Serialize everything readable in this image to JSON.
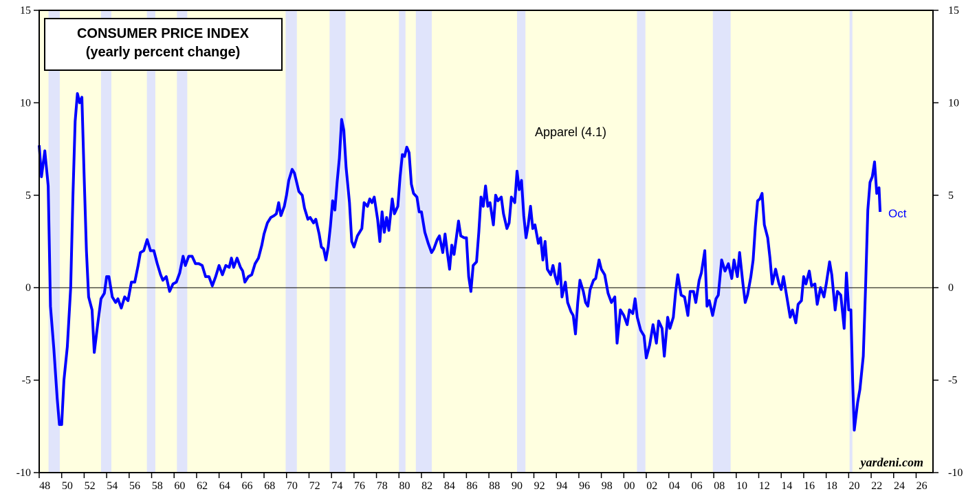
{
  "chart_data": {
    "type": "line",
    "title": "CONSUMER PRICE INDEX",
    "subtitle": "(yearly percent change)",
    "annotation": "Apparel (4.1)",
    "end_label": "Oct",
    "source": "yardeni.com",
    "xlim": [
      1948,
      2027.5
    ],
    "ylim": [
      -10,
      15
    ],
    "yticks": [
      -10,
      -5,
      0,
      5,
      10,
      15
    ],
    "xticks": [
      {
        "value": 1948,
        "label": "48"
      },
      {
        "value": 1950,
        "label": "50"
      },
      {
        "value": 1952,
        "label": "52"
      },
      {
        "value": 1954,
        "label": "54"
      },
      {
        "value": 1956,
        "label": "56"
      },
      {
        "value": 1958,
        "label": "58"
      },
      {
        "value": 1960,
        "label": "60"
      },
      {
        "value": 1962,
        "label": "62"
      },
      {
        "value": 1964,
        "label": "64"
      },
      {
        "value": 1966,
        "label": "66"
      },
      {
        "value": 1968,
        "label": "68"
      },
      {
        "value": 1970,
        "label": "70"
      },
      {
        "value": 1972,
        "label": "72"
      },
      {
        "value": 1974,
        "label": "74"
      },
      {
        "value": 1976,
        "label": "76"
      },
      {
        "value": 1978,
        "label": "78"
      },
      {
        "value": 1980,
        "label": "80"
      },
      {
        "value": 1982,
        "label": "82"
      },
      {
        "value": 1984,
        "label": "84"
      },
      {
        "value": 1986,
        "label": "86"
      },
      {
        "value": 1988,
        "label": "88"
      },
      {
        "value": 1990,
        "label": "90"
      },
      {
        "value": 1992,
        "label": "92"
      },
      {
        "value": 1994,
        "label": "94"
      },
      {
        "value": 1996,
        "label": "96"
      },
      {
        "value": 1998,
        "label": "98"
      },
      {
        "value": 2000,
        "label": "00"
      },
      {
        "value": 2002,
        "label": "02"
      },
      {
        "value": 2004,
        "label": "04"
      },
      {
        "value": 2006,
        "label": "06"
      },
      {
        "value": 2008,
        "label": "08"
      },
      {
        "value": 2010,
        "label": "10"
      },
      {
        "value": 2012,
        "label": "12"
      },
      {
        "value": 2014,
        "label": "14"
      },
      {
        "value": 2016,
        "label": "16"
      },
      {
        "value": 2018,
        "label": "18"
      },
      {
        "value": 2020,
        "label": "20"
      },
      {
        "value": 2022,
        "label": "22"
      },
      {
        "value": 2024,
        "label": "24"
      },
      {
        "value": 2026,
        "label": "26"
      }
    ],
    "background_color": "#ffffe0",
    "recession_color": "#e0e4fb",
    "recessions": [
      [
        1948.83,
        1949.83
      ],
      [
        1953.5,
        1954.42
      ],
      [
        1957.58,
        1958.33
      ],
      [
        1960.25,
        1961.17
      ],
      [
        1969.92,
        1970.92
      ],
      [
        1973.83,
        1975.25
      ],
      [
        1980.0,
        1980.58
      ],
      [
        1981.5,
        1982.92
      ],
      [
        1990.5,
        1991.25
      ],
      [
        2001.17,
        2001.92
      ],
      [
        2007.92,
        2009.5
      ],
      [
        2020.08,
        2020.33
      ]
    ],
    "x": [
      1948.0,
      1948.2,
      1948.5,
      1948.8,
      1949.0,
      1949.3,
      1949.6,
      1949.8,
      1950.0,
      1950.2,
      1950.5,
      1950.8,
      1951.0,
      1951.2,
      1951.4,
      1951.6,
      1951.8,
      1952.0,
      1952.2,
      1952.4,
      1952.7,
      1952.9,
      1953.2,
      1953.5,
      1953.8,
      1954.0,
      1954.2,
      1954.5,
      1954.8,
      1955.0,
      1955.3,
      1955.6,
      1955.9,
      1956.2,
      1956.5,
      1956.8,
      1957.0,
      1957.3,
      1957.6,
      1957.9,
      1958.2,
      1958.5,
      1958.8,
      1959.0,
      1959.3,
      1959.6,
      1959.9,
      1960.2,
      1960.5,
      1960.8,
      1961.0,
      1961.3,
      1961.6,
      1961.9,
      1962.2,
      1962.5,
      1962.8,
      1963.1,
      1963.4,
      1963.7,
      1964.0,
      1964.3,
      1964.6,
      1964.9,
      1965.1,
      1965.3,
      1965.6,
      1965.9,
      1966.1,
      1966.3,
      1966.6,
      1966.9,
      1967.2,
      1967.5,
      1967.8,
      1968.0,
      1968.3,
      1968.6,
      1968.9,
      1969.1,
      1969.3,
      1969.5,
      1969.8,
      1970.0,
      1970.2,
      1970.5,
      1970.7,
      1970.9,
      1971.1,
      1971.4,
      1971.6,
      1971.9,
      1972.1,
      1972.4,
      1972.6,
      1972.9,
      1973.1,
      1973.3,
      1973.5,
      1973.7,
      1973.9,
      1974.1,
      1974.3,
      1974.5,
      1974.7,
      1974.9,
      1975.1,
      1975.3,
      1975.6,
      1975.8,
      1976.0,
      1976.3,
      1976.7,
      1976.9,
      1977.2,
      1977.4,
      1977.6,
      1977.8,
      1978.1,
      1978.3,
      1978.5,
      1978.7,
      1978.9,
      1979.1,
      1979.4,
      1979.6,
      1979.9,
      1980.1,
      1980.3,
      1980.5,
      1980.7,
      1980.9,
      1981.1,
      1981.3,
      1981.6,
      1981.8,
      1982.0,
      1982.3,
      1982.6,
      1982.9,
      1983.1,
      1983.4,
      1983.6,
      1983.9,
      1984.1,
      1984.3,
      1984.5,
      1984.7,
      1984.9,
      1985.1,
      1985.3,
      1985.5,
      1985.8,
      1986.0,
      1986.2,
      1986.4,
      1986.6,
      1986.9,
      1987.1,
      1987.3,
      1987.5,
      1987.7,
      1987.9,
      1988.1,
      1988.4,
      1988.6,
      1988.8,
      1989.1,
      1989.3,
      1989.6,
      1989.8,
      1990.0,
      1990.3,
      1990.5,
      1990.7,
      1990.9,
      1991.1,
      1991.3,
      1991.5,
      1991.7,
      1991.9,
      1992.1,
      1992.4,
      1992.6,
      1992.8,
      1993.0,
      1993.2,
      1993.5,
      1993.7,
      1993.9,
      1994.1,
      1994.3,
      1994.5,
      1994.8,
      1995.0,
      1995.3,
      1995.5,
      1995.7,
      1995.9,
      1996.1,
      1996.4,
      1996.6,
      1996.8,
      1997.0,
      1997.3,
      1997.5,
      1997.8,
      1998.0,
      1998.3,
      1998.6,
      1998.9,
      1999.2,
      1999.4,
      1999.7,
      2000.0,
      2000.3,
      2000.5,
      2000.8,
      2001.0,
      2001.2,
      2001.5,
      2001.8,
      2002.0,
      2002.3,
      2002.6,
      2002.9,
      2003.1,
      2003.4,
      2003.6,
      2003.9,
      2004.1,
      2004.4,
      2004.6,
      2004.8,
      2005.1,
      2005.4,
      2005.7,
      2005.9,
      2006.2,
      2006.4,
      2006.7,
      2006.9,
      2007.2,
      2007.4,
      2007.6,
      2007.9,
      2008.2,
      2008.4,
      2008.7,
      2009.0,
      2009.3,
      2009.6,
      2009.8,
      2010.1,
      2010.3,
      2010.6,
      2010.8,
      2011.0,
      2011.3,
      2011.5,
      2011.7,
      2011.9,
      2012.1,
      2012.3,
      2012.5,
      2012.8,
      2013.0,
      2013.2,
      2013.5,
      2013.8,
      2014.0,
      2014.2,
      2014.5,
      2014.8,
      2015.0,
      2015.3,
      2015.5,
      2015.8,
      2016.0,
      2016.2,
      2016.5,
      2016.7,
      2017.0,
      2017.2,
      2017.5,
      2017.8,
      2018.0,
      2018.3,
      2018.5,
      2018.8,
      2019.0,
      2019.3,
      2019.6,
      2019.8,
      2020.0,
      2020.2,
      2020.35,
      2020.5,
      2020.8,
      2021.0,
      2021.3,
      2021.5,
      2021.7,
      2021.9,
      2022.1,
      2022.3,
      2022.5,
      2022.7,
      2022.8
    ],
    "series": [
      {
        "name": "Apparel",
        "color": "#0000ff",
        "values": [
          7.7,
          6.0,
          7.4,
          5.5,
          -1,
          -3.3,
          -6,
          -7.4,
          -7.4,
          -5,
          -3.2,
          0,
          5,
          9,
          10.5,
          10.0,
          10.3,
          6,
          2,
          -0.5,
          -1.2,
          -3.5,
          -2,
          -0.6,
          -0.3,
          0.6,
          0.6,
          -0.5,
          -0.8,
          -0.6,
          -1.1,
          -0.5,
          -0.7,
          0.3,
          0.3,
          1.2,
          1.9,
          2.0,
          2.6,
          2.0,
          2.0,
          1.3,
          0.7,
          0.4,
          0.6,
          -0.2,
          0.2,
          0.3,
          0.8,
          1.7,
          1.2,
          1.7,
          1.7,
          1.3,
          1.3,
          1.2,
          0.6,
          0.6,
          0.1,
          0.6,
          1.2,
          0.7,
          1.2,
          1.1,
          1.6,
          1.1,
          1.6,
          1.1,
          0.9,
          0.3,
          0.6,
          0.7,
          1.3,
          1.6,
          2.3,
          2.9,
          3.5,
          3.8,
          3.9,
          4.0,
          4.6,
          3.9,
          4.4,
          5.0,
          5.8,
          6.4,
          6.2,
          5.7,
          5.2,
          5.0,
          4.3,
          3.7,
          3.8,
          3.5,
          3.7,
          2.9,
          2.2,
          2.1,
          1.5,
          2.2,
          3.3,
          4.7,
          4.2,
          5.7,
          7.0,
          9.1,
          8.5,
          6.5,
          4.6,
          2.5,
          2.2,
          2.8,
          3.2,
          4.6,
          4.4,
          4.8,
          4.6,
          4.9,
          3.7,
          2.5,
          4.1,
          3.0,
          3.8,
          3.1,
          4.8,
          4.0,
          4.4,
          6.0,
          7.2,
          7.1,
          7.6,
          7.3,
          5.6,
          5.1,
          4.9,
          4.1,
          4.1,
          3.0,
          2.4,
          1.9,
          2.1,
          2.6,
          2.8,
          1.9,
          2.9,
          1.9,
          1.0,
          2.3,
          1.8,
          2.7,
          3.6,
          2.8,
          2.7,
          2.7,
          0.6,
          -0.2,
          1.2,
          1.4,
          3.0,
          4.9,
          4.4,
          5.5,
          4.4,
          4.6,
          3.4,
          5.0,
          4.7,
          4.9,
          4.0,
          3.2,
          3.5,
          4.9,
          4.6,
          6.3,
          5.3,
          5.8,
          3.9,
          2.7,
          3.4,
          4.4,
          3.2,
          3.4,
          2.4,
          2.7,
          1.5,
          2.5,
          1.0,
          0.7,
          1.2,
          0.6,
          0.2,
          1.3,
          -0.5,
          0.3,
          -0.8,
          -1.3,
          -1.5,
          -2.5,
          -0.8,
          0.4,
          -0.2,
          -0.8,
          -1.0,
          -0.1,
          0.4,
          0.5,
          1.5,
          1.0,
          0.7,
          -0.3,
          -0.8,
          -0.5,
          -3.0,
          -1.2,
          -1.5,
          -2.0,
          -1.2,
          -1.4,
          -0.6,
          -1.6,
          -2.3,
          -2.6,
          -3.8,
          -3.1,
          -2.0,
          -3.0,
          -1.8,
          -2.2,
          -3.7,
          -1.6,
          -2.2,
          -1.6,
          -0.3,
          0.7,
          -0.4,
          -0.5,
          -1.5,
          -0.2,
          -0.2,
          -0.8,
          0.4,
          0.8,
          2.0,
          -1.0,
          -0.7,
          -1.5,
          -0.6,
          -0.4,
          1.5,
          0.9,
          1.3,
          0.5,
          1.5,
          0.6,
          1.9,
          0.2,
          -0.8,
          -0.4,
          0.6,
          1.5,
          3.3,
          4.7,
          4.8,
          5.1,
          3.4,
          2.7,
          1.6,
          0.2,
          1.0,
          0.2,
          -0.1,
          0.6,
          -0.5,
          -1.6,
          -1.2,
          -1.9,
          -0.9,
          -0.7,
          0.6,
          0.2,
          0.9,
          0.1,
          0.2,
          -0.9,
          0.0,
          -0.5,
          0.2,
          1.4,
          0.7,
          -1.2,
          -0.2,
          -0.4,
          -2.2,
          0.8,
          -1.2,
          -1.2,
          -5,
          -7.7,
          -6.2,
          -5.5,
          -3.7,
          0.0,
          4.2,
          5.7,
          6.0,
          6.8,
          5.1,
          5.4,
          4.1
        ]
      }
    ]
  }
}
